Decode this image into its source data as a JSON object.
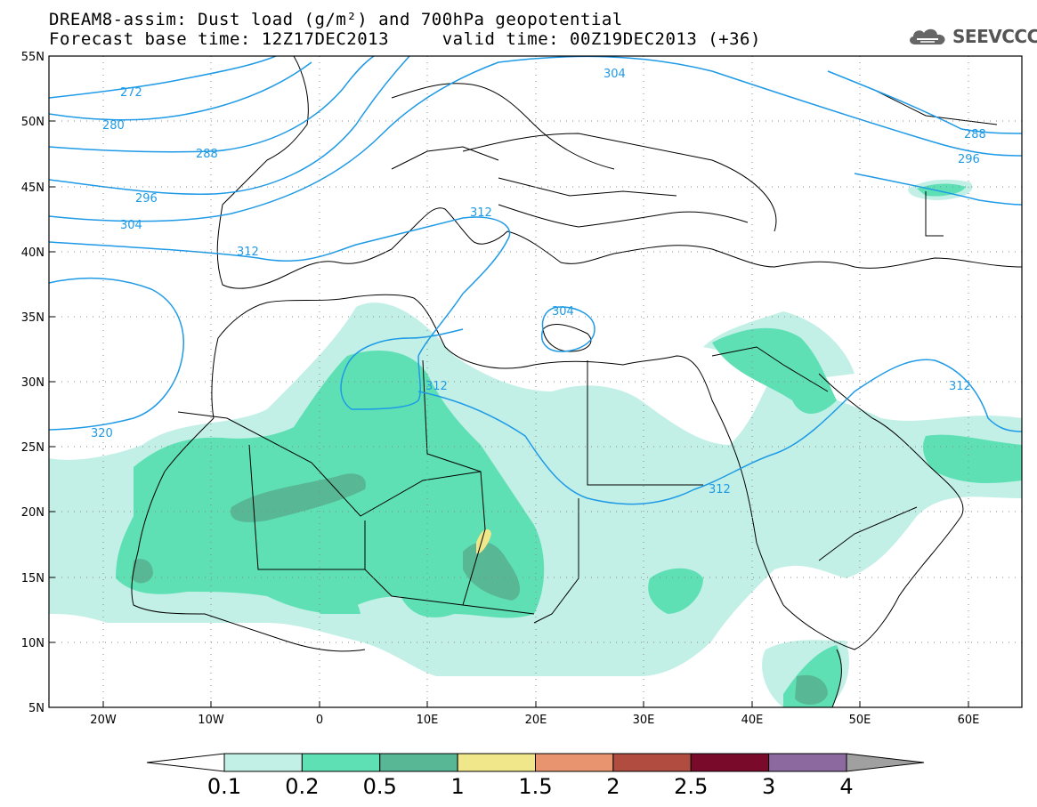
{
  "header": {
    "line1": "DREAM8-assim: Dust load (g/m²) and 700hPa geopotential",
    "line2": "Forecast base time: 12Z17DEC2013     valid time: 00Z19DEC2013 (+36)"
  },
  "logo": {
    "text": "SEEVCCC",
    "icon": "cloud-icon"
  },
  "axes": {
    "lat_labels": [
      "55N",
      "50N",
      "45N",
      "40N",
      "35N",
      "30N",
      "25N",
      "20N",
      "15N",
      "10N",
      "5N"
    ],
    "lon_labels": [
      "20W",
      "10W",
      "0",
      "10E",
      "20E",
      "30E",
      "40E",
      "50E",
      "60E"
    ]
  },
  "contour_labels": [
    "272",
    "280",
    "288",
    "296",
    "304",
    "312",
    "320",
    "304",
    "312",
    "312",
    "312",
    "304",
    "288",
    "296",
    "312"
  ],
  "colorbar": {
    "ticks": [
      "0.1",
      "0.2",
      "0.5",
      "1",
      "1.5",
      "2",
      "2.5",
      "3",
      "4"
    ],
    "colors": [
      "#c2f0e6",
      "#5ee0b4",
      "#58b896",
      "#f0e68a",
      "#e8946e",
      "#b04c40",
      "#7a0a2a",
      "#8c6aa0"
    ],
    "under_color": "#ffffff",
    "over_color": "#a0a0a0"
  },
  "colors": {
    "contour": "#1e9ae6",
    "coast": "#000000"
  }
}
